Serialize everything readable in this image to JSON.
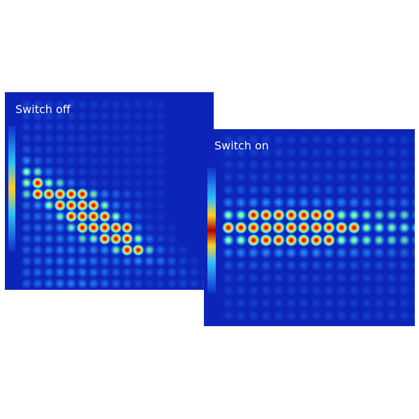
{
  "panels": [
    {
      "label": "Switch off"
    },
    {
      "label": "Switch on"
    }
  ]
}
